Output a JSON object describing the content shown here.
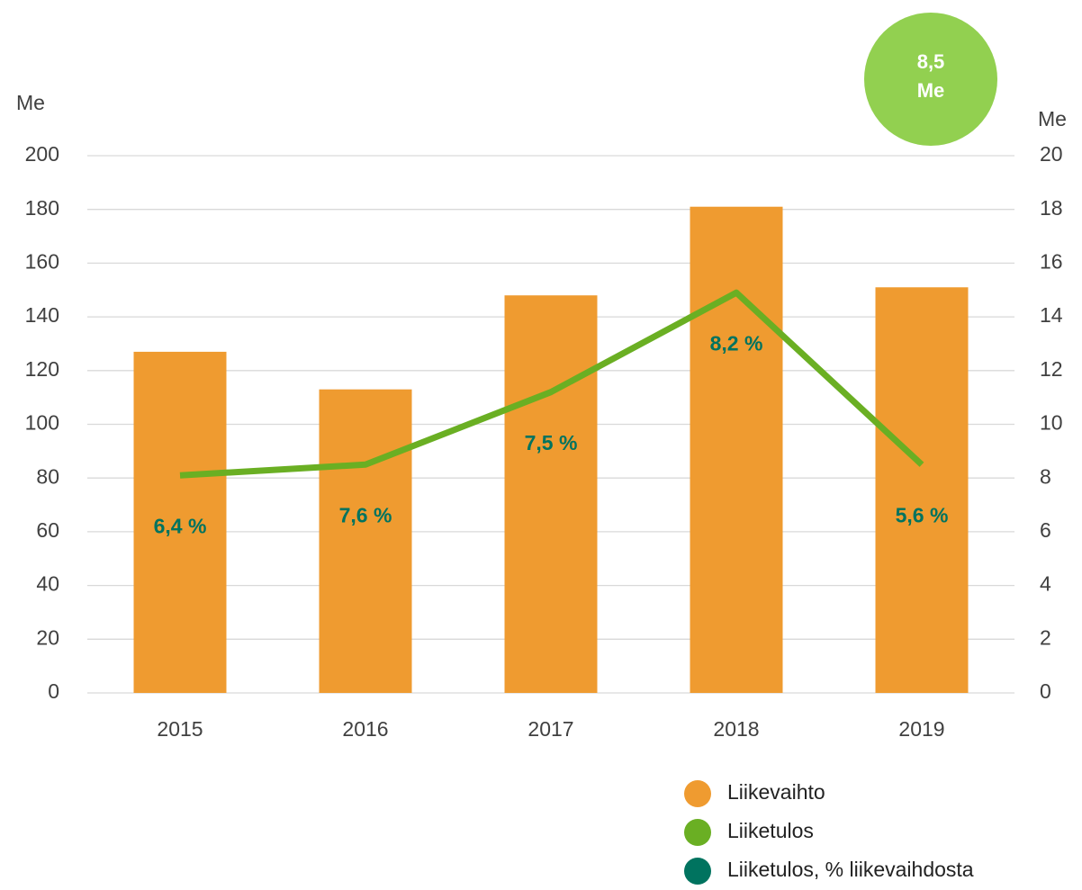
{
  "chart_data": {
    "type": "bar_line",
    "categories": [
      "2015",
      "2016",
      "2017",
      "2018",
      "2019"
    ],
    "ylabel": "Me",
    "y2label": "Me",
    "ylim": [
      0,
      200
    ],
    "yticks": [
      0,
      20,
      40,
      60,
      80,
      100,
      120,
      140,
      160,
      180,
      200
    ],
    "y2lim": [
      0,
      20
    ],
    "y2ticks": [
      0,
      2,
      4,
      6,
      8,
      10,
      12,
      14,
      16,
      18,
      20
    ],
    "grid": true,
    "series": [
      {
        "name": "Liikevaihto",
        "type": "bar",
        "color": "#ef9b30",
        "values": [
          127,
          113,
          148,
          181,
          151
        ]
      },
      {
        "name": "Liiketulos",
        "type": "line",
        "axis": "y2",
        "color": "#6aaf23",
        "values": [
          8.1,
          8.5,
          11.2,
          14.9,
          8.5
        ]
      },
      {
        "name": "Liiketulos, % liikevaihdosta",
        "type": "label",
        "color": "#00735f",
        "values": [
          6.4,
          7.6,
          7.5,
          8.2,
          5.6
        ],
        "value_labels": [
          "6,4 %",
          "7,6 %",
          "7,5 %",
          "8,2 %",
          "5,6 %"
        ]
      }
    ],
    "annotation": [
      "8,5",
      "Me"
    ],
    "annotation_color": "#92d050"
  }
}
